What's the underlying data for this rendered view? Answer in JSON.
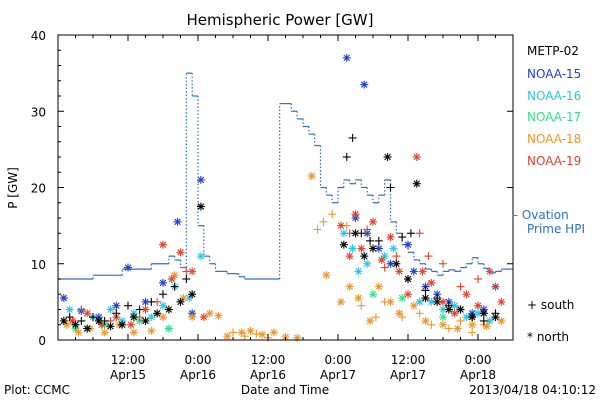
{
  "chart_data": {
    "type": "scatter",
    "title": "Hemispheric Power [GW]",
    "xlabel": "Date and Time",
    "ylabel": "P [GW]",
    "ylim": [
      0,
      40
    ],
    "yticks": [
      0,
      10,
      20,
      30,
      40
    ],
    "xlim_hours": [
      0,
      78
    ],
    "xticks": [
      {
        "time": "12:00",
        "date": "Apr15",
        "hour": 12
      },
      {
        "time": "0:00",
        "date": "Apr16",
        "hour": 24
      },
      {
        "time": "12:00",
        "date": "Apr16",
        "hour": 36
      },
      {
        "time": "0:00",
        "date": "Apr17",
        "hour": 48
      },
      {
        "time": "12:00",
        "date": "Apr17",
        "hour": 60
      },
      {
        "time": "0:00",
        "date": "Apr18",
        "hour": 72
      }
    ],
    "grid": false,
    "legend": {
      "placement": "right",
      "entries": [
        {
          "name": "METP-02",
          "color": "#000000"
        },
        {
          "name": "NOAA-15",
          "color": "#1a3fd6"
        },
        {
          "name": "NOAA-16",
          "color": "#22c8e8"
        },
        {
          "name": "NOAA-17",
          "color": "#2fe28a"
        },
        {
          "name": "NOAA-18",
          "color": "#f0952a"
        },
        {
          "name": "NOAA-19",
          "color": "#e8402a"
        }
      ],
      "ovation_label_1": "– Ovation",
      "ovation_label_2": "Prime HPI",
      "marker_south": "+ south",
      "marker_north": "* north"
    },
    "ovation_color": "#2a6fc9",
    "ovation_step": [
      [
        0,
        8
      ],
      [
        6,
        8
      ],
      [
        6,
        8.5
      ],
      [
        11,
        8.5
      ],
      [
        11,
        9.3
      ],
      [
        16,
        9.3
      ],
      [
        16,
        10
      ],
      [
        19,
        10
      ],
      [
        19,
        11
      ],
      [
        20,
        11
      ],
      [
        20,
        10.5
      ],
      [
        21,
        10.5
      ],
      [
        21,
        9.5
      ],
      [
        22,
        9.5
      ],
      [
        22,
        35
      ],
      [
        23,
        35
      ],
      [
        23,
        32
      ],
      [
        24,
        32
      ],
      [
        24,
        15
      ],
      [
        25,
        15
      ],
      [
        25,
        11
      ],
      [
        26,
        11
      ],
      [
        26,
        10
      ],
      [
        27,
        10
      ],
      [
        27,
        9
      ],
      [
        29,
        9
      ],
      [
        29,
        8.7
      ],
      [
        31,
        8.7
      ],
      [
        31,
        8.3
      ],
      [
        32,
        8.3
      ],
      [
        32,
        8
      ],
      [
        38,
        8
      ],
      [
        38,
        31
      ],
      [
        40,
        31
      ],
      [
        40,
        30
      ],
      [
        41,
        30
      ],
      [
        41,
        29
      ],
      [
        42,
        29
      ],
      [
        42,
        28
      ],
      [
        43,
        28
      ],
      [
        43,
        27
      ],
      [
        44,
        27
      ],
      [
        44,
        25.5
      ],
      [
        45,
        25.5
      ],
      [
        45,
        20
      ],
      [
        46,
        20
      ],
      [
        46,
        19
      ],
      [
        47,
        19
      ],
      [
        47,
        18
      ],
      [
        48,
        18
      ],
      [
        48,
        20
      ],
      [
        49,
        20
      ],
      [
        49,
        21
      ],
      [
        50,
        21
      ],
      [
        50,
        20.5
      ],
      [
        51,
        20.5
      ],
      [
        51,
        21
      ],
      [
        52,
        21
      ],
      [
        52,
        20
      ],
      [
        53,
        20
      ],
      [
        53,
        19
      ],
      [
        54,
        19
      ],
      [
        54,
        18
      ],
      [
        55,
        18
      ],
      [
        55,
        19
      ],
      [
        56,
        19
      ],
      [
        56,
        21
      ],
      [
        57,
        21
      ],
      [
        57,
        15.5
      ],
      [
        58,
        15.5
      ],
      [
        58,
        14
      ],
      [
        59,
        14
      ],
      [
        59,
        12.5
      ],
      [
        60,
        12.5
      ],
      [
        60,
        11.5
      ],
      [
        61,
        11.5
      ],
      [
        61,
        10.5
      ],
      [
        62,
        10.5
      ],
      [
        62,
        10
      ],
      [
        63,
        10
      ],
      [
        63,
        9.3
      ],
      [
        64,
        9.3
      ],
      [
        64,
        9
      ],
      [
        65,
        9
      ],
      [
        65,
        8.5
      ],
      [
        66,
        8.5
      ],
      [
        66,
        9
      ],
      [
        67,
        9
      ],
      [
        67,
        9.2
      ],
      [
        68,
        9.2
      ],
      [
        68,
        9
      ],
      [
        69,
        9
      ],
      [
        69,
        9.5
      ],
      [
        70,
        9.5
      ],
      [
        70,
        10
      ],
      [
        71,
        10
      ],
      [
        71,
        10.8
      ],
      [
        72,
        10.8
      ],
      [
        72,
        10
      ],
      [
        73,
        10
      ],
      [
        73,
        9.4
      ],
      [
        74,
        9.4
      ],
      [
        74,
        8.8
      ],
      [
        75,
        8.8
      ],
      [
        75,
        9
      ],
      [
        76,
        9
      ],
      [
        76,
        9.3
      ],
      [
        78,
        9.3
      ]
    ],
    "series": [
      {
        "sat": "NOAA-15",
        "marker": "star",
        "points": [
          [
            1,
            5.5
          ],
          [
            4,
            3.8
          ],
          [
            7,
            3
          ],
          [
            10,
            4.5
          ],
          [
            12,
            9.5
          ],
          [
            15,
            5
          ],
          [
            18,
            7.5
          ],
          [
            20.5,
            15.5
          ],
          [
            23,
            3.5
          ],
          [
            24.5,
            21
          ],
          [
            49.5,
            37
          ],
          [
            51,
            16
          ],
          [
            52.5,
            33.5
          ],
          [
            53,
            14
          ],
          [
            55,
            12
          ],
          [
            57,
            10
          ],
          [
            60,
            12.5
          ],
          [
            61,
            9
          ],
          [
            63,
            7
          ],
          [
            65,
            6
          ],
          [
            67,
            5
          ],
          [
            69,
            4
          ],
          [
            71,
            3.5
          ],
          [
            73,
            4
          ],
          [
            75,
            7
          ]
        ]
      },
      {
        "sat": "NOAA-16",
        "marker": "star",
        "points": [
          [
            2,
            4
          ],
          [
            6,
            3
          ],
          [
            9,
            4
          ],
          [
            11,
            2.5
          ],
          [
            13,
            3.5
          ],
          [
            16,
            3
          ],
          [
            18,
            4.5
          ],
          [
            20,
            7
          ],
          [
            22.5,
            5.5
          ],
          [
            24.5,
            11
          ],
          [
            49,
            14
          ],
          [
            50.5,
            12
          ],
          [
            51.5,
            9
          ],
          [
            53,
            10
          ],
          [
            56,
            11
          ],
          [
            57.5,
            12
          ],
          [
            60,
            8
          ],
          [
            62,
            5
          ],
          [
            64,
            5
          ],
          [
            66,
            4
          ],
          [
            68,
            4.5
          ],
          [
            70,
            3
          ],
          [
            72,
            3.5
          ],
          [
            74,
            2.5
          ]
        ]
      },
      {
        "sat": "NOAA-17",
        "marker": "star",
        "points": [
          [
            3,
            1.5
          ],
          [
            8,
            2
          ],
          [
            14,
            2.5
          ],
          [
            19,
            1.5
          ],
          [
            54,
            6
          ],
          [
            59,
            5.5
          ],
          [
            66,
            3
          ]
        ]
      },
      {
        "sat": "NOAA-18",
        "marker": "star",
        "points": [
          [
            1.5,
            2
          ],
          [
            3.5,
            1
          ],
          [
            5.5,
            1.5
          ],
          [
            8,
            1
          ],
          [
            10.5,
            2
          ],
          [
            13,
            1
          ],
          [
            16,
            1.2
          ],
          [
            18,
            3
          ],
          [
            20,
            8.5
          ],
          [
            21.5,
            5.5
          ],
          [
            23,
            3
          ],
          [
            26,
            3.5
          ],
          [
            27.5,
            3.2
          ],
          [
            29,
            0.5
          ],
          [
            31.5,
            1
          ],
          [
            33,
            1.2
          ],
          [
            35,
            0.7
          ],
          [
            37,
            1
          ],
          [
            39,
            0.4
          ],
          [
            41,
            0.3
          ],
          [
            43.5,
            21.5
          ],
          [
            46,
            8.5
          ],
          [
            48.5,
            5
          ],
          [
            50,
            7
          ],
          [
            51.5,
            5.5
          ],
          [
            53.5,
            2.5
          ],
          [
            55,
            7
          ],
          [
            57,
            5
          ],
          [
            58.5,
            3.5
          ],
          [
            61,
            4.5
          ],
          [
            63,
            2.5
          ],
          [
            66,
            2
          ],
          [
            68.5,
            1.5
          ],
          [
            71,
            2
          ],
          [
            73.5,
            1.8
          ],
          [
            76,
            2.5
          ]
        ]
      },
      {
        "sat": "NOAA-18",
        "marker": "plus",
        "points": [
          [
            30,
            1
          ],
          [
            32,
            0.5
          ],
          [
            34,
            0.8
          ],
          [
            36,
            0.3
          ],
          [
            44.5,
            14.5
          ],
          [
            45.5,
            15.5
          ],
          [
            47,
            16.5
          ],
          [
            49.5,
            15
          ],
          [
            52,
            4.5
          ],
          [
            54.5,
            3
          ],
          [
            56,
            5
          ],
          [
            59,
            3
          ],
          [
            62,
            3.5
          ],
          [
            64,
            2
          ],
          [
            67,
            1.5
          ],
          [
            69,
            2.5
          ],
          [
            71,
            1
          ],
          [
            73,
            2
          ]
        ]
      },
      {
        "sat": "NOAA-19",
        "marker": "star",
        "points": [
          [
            2.5,
            2.5
          ],
          [
            5,
            3.5
          ],
          [
            7.5,
            2
          ],
          [
            10,
            3
          ],
          [
            12.5,
            2
          ],
          [
            15,
            4
          ],
          [
            18,
            12.5
          ],
          [
            19.5,
            8
          ],
          [
            21,
            11.5
          ],
          [
            23,
            9
          ],
          [
            25,
            3
          ],
          [
            48.5,
            15
          ],
          [
            50,
            11
          ],
          [
            51,
            16.5
          ],
          [
            52,
            12
          ],
          [
            54,
            15.5
          ],
          [
            55.5,
            10.5
          ],
          [
            57,
            13.5
          ],
          [
            58.5,
            9
          ],
          [
            60,
            6
          ],
          [
            61.5,
            24
          ],
          [
            62.5,
            9
          ],
          [
            64,
            7.5
          ],
          [
            66,
            5
          ],
          [
            68,
            3.5
          ],
          [
            70,
            6
          ],
          [
            72,
            4.5
          ],
          [
            74,
            9
          ],
          [
            76,
            5
          ]
        ]
      },
      {
        "sat": "NOAA-19",
        "marker": "plus",
        "points": [
          [
            4,
            4
          ],
          [
            9,
            2.5
          ],
          [
            14,
            3
          ],
          [
            17,
            5
          ],
          [
            22,
            9
          ],
          [
            50,
            14
          ],
          [
            53,
            14.5
          ],
          [
            56,
            9.5
          ],
          [
            58,
            11
          ],
          [
            62,
            14
          ],
          [
            63.5,
            11
          ],
          [
            66,
            10
          ],
          [
            69,
            7
          ],
          [
            72,
            8
          ],
          [
            75,
            7
          ]
        ]
      },
      {
        "sat": "METP-02",
        "marker": "star",
        "points": [
          [
            1,
            2.5
          ],
          [
            3,
            2
          ],
          [
            5,
            1.5
          ],
          [
            7,
            2.5
          ],
          [
            9,
            1.8
          ],
          [
            11,
            2
          ],
          [
            13,
            3
          ],
          [
            15,
            2.5
          ],
          [
            17,
            3.5
          ],
          [
            19,
            4
          ],
          [
            21,
            5
          ],
          [
            23,
            6
          ],
          [
            24.5,
            17.5
          ],
          [
            49,
            12.5
          ],
          [
            51,
            14
          ],
          [
            52.5,
            11
          ],
          [
            54,
            12
          ],
          [
            56.5,
            24
          ],
          [
            58,
            10
          ],
          [
            60,
            8
          ],
          [
            61.5,
            20.5
          ],
          [
            63,
            5.5
          ],
          [
            65,
            5
          ],
          [
            67,
            4
          ],
          [
            69,
            4
          ],
          [
            71,
            3
          ],
          [
            73,
            3.5
          ],
          [
            75,
            3
          ]
        ]
      },
      {
        "sat": "METP-02",
        "marker": "plus",
        "points": [
          [
            2,
            3
          ],
          [
            4,
            2.5
          ],
          [
            6,
            3
          ],
          [
            8,
            2.5
          ],
          [
            10,
            3.5
          ],
          [
            12,
            4.5
          ],
          [
            14,
            4
          ],
          [
            16,
            5
          ],
          [
            18,
            6
          ],
          [
            20,
            7
          ],
          [
            22,
            8
          ],
          [
            49.5,
            24
          ],
          [
            50.5,
            26.5
          ],
          [
            52,
            14
          ],
          [
            53.5,
            13
          ],
          [
            55,
            13
          ],
          [
            57,
            20
          ],
          [
            59,
            13.5
          ],
          [
            60.5,
            14
          ],
          [
            63,
            6.5
          ],
          [
            65,
            5.5
          ],
          [
            67,
            4.5
          ],
          [
            69,
            4
          ],
          [
            71,
            3
          ],
          [
            73,
            2.5
          ],
          [
            75,
            3.5
          ]
        ]
      }
    ]
  },
  "footer": {
    "plot_credit": "Plot: CCMC",
    "timestamp": "2013/04/18 04:10:12"
  }
}
